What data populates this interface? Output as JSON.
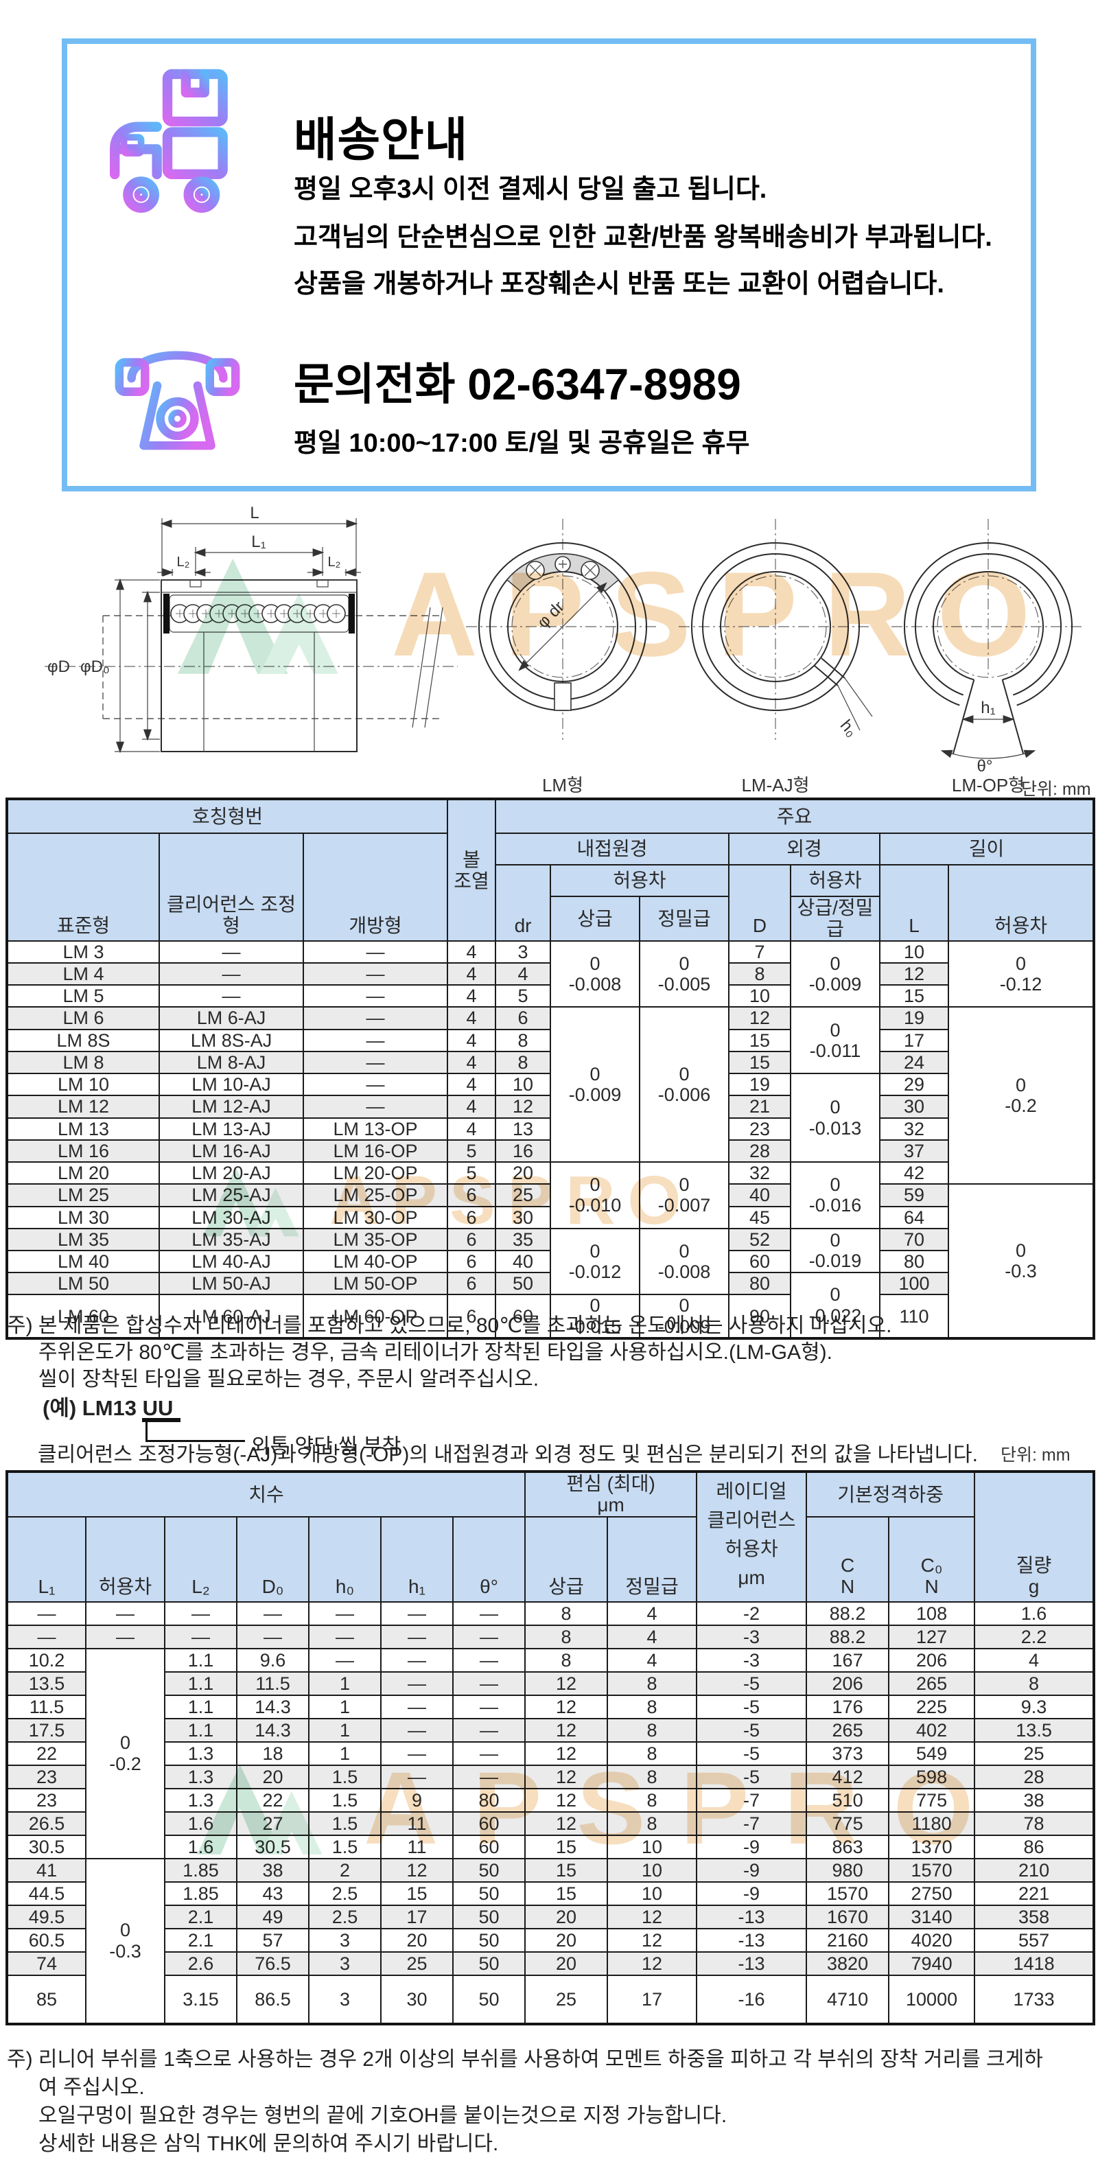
{
  "watermark": {
    "text": "APSPRO"
  },
  "shipping": {
    "title": "배송안내",
    "lines": [
      "평일 오후3시 이전 결제시 당일 출고 됩니다.",
      "고객님의 단순변심으로 인한 교환/반품 왕복배송비가 부과됩니다.",
      "상품을 개봉하거나 포장훼손시 반품 또는 교환이 어렵습니다."
    ]
  },
  "contact": {
    "title": "문의전화  02-6347-8989",
    "hours": "평일 10:00~17:00 토/일 및 공휴일은 휴무"
  },
  "diagram": {
    "views": [
      {
        "label": "LM형"
      },
      {
        "label": "LM-AJ형"
      },
      {
        "label": "LM-OP형"
      }
    ],
    "dims": {
      "L": "L",
      "L1": "L₁",
      "L2": "L₂",
      "phiD": "φD",
      "phiD0": "φD₀",
      "phidr": "φ dr",
      "h0": "h₀",
      "h1": "h₁",
      "theta": "θ°"
    },
    "unit": "단위: mm"
  },
  "table1": {
    "unit": "단위: mm",
    "header": {
      "model_group": "호칭형번",
      "ball": [
        "볼",
        "조열"
      ],
      "main_group": "주요",
      "col_standard": "표준형",
      "col_clearance": "클리어런스 조정형",
      "col_open": "개방형",
      "inner_dia": "내접원경",
      "outer_dia": "외경",
      "length": "길이",
      "tol": "허용차",
      "dr": "dr",
      "grade_high": "상급",
      "grade_precision": "정밀급",
      "D": "D",
      "grade_both": "상급/정밀급",
      "L": "L"
    },
    "rows": [
      [
        "LM 3",
        "—",
        "—",
        "4",
        "3",
        {
          "t": [
            "0",
            "-0.008"
          ],
          "rs": 3
        },
        {
          "t": [
            "0",
            "-0.005"
          ],
          "rs": 3
        },
        "7",
        {
          "t": [
            "0",
            "-0.009"
          ],
          "rs": 3
        },
        "10",
        {
          "t": [
            "0",
            "-0.12"
          ],
          "rs": 3
        }
      ],
      [
        "LM 4",
        "—",
        "—",
        "4",
        "4",
        "8",
        "12"
      ],
      [
        "LM 5",
        "—",
        "—",
        "4",
        "5",
        "10",
        "15"
      ],
      [
        "LM 6",
        "LM 6-AJ",
        "—",
        "4",
        "6",
        {
          "t": [
            "0",
            "-0.009"
          ],
          "rs": 7
        },
        {
          "t": [
            "0",
            "-0.006"
          ],
          "rs": 7
        },
        "12",
        {
          "t": [
            "0",
            "-0.011"
          ],
          "rs": 3
        },
        "19",
        {
          "t": [
            "0",
            "-0.2"
          ],
          "rs": 8
        }
      ],
      [
        "LM 8S",
        "LM 8S-AJ",
        "—",
        "4",
        "8",
        "15",
        "17"
      ],
      [
        "LM 8",
        "LM 8-AJ",
        "—",
        "4",
        "8",
        "15",
        "24"
      ],
      [
        "LM 10",
        "LM 10-AJ",
        "—",
        "4",
        "10",
        "19",
        {
          "t": [
            "0",
            "-0.013"
          ],
          "rs": 4
        },
        "29"
      ],
      [
        "LM 12",
        "LM 12-AJ",
        "—",
        "4",
        "12",
        "21",
        "30"
      ],
      [
        "LM 13",
        "LM 13-AJ",
        "LM 13-OP",
        "4",
        "13",
        "23",
        "32"
      ],
      [
        "LM 16",
        "LM 16-AJ",
        "LM 16-OP",
        "5",
        "16",
        "28",
        "37"
      ],
      [
        "LM 20",
        "LM 20-AJ",
        "LM 20-OP",
        "5",
        "20",
        {
          "t": [
            "0",
            "-0.010"
          ],
          "rs": 3
        },
        {
          "t": [
            "0",
            "-0.007"
          ],
          "rs": 3
        },
        "32",
        {
          "t": [
            "0",
            "-0.016"
          ],
          "rs": 3
        },
        "42"
      ],
      [
        "LM 25",
        "LM 25-AJ",
        "LM 25-OP",
        "6",
        "25",
        "40",
        "59",
        {
          "t": [
            "0",
            "-0.3"
          ],
          "rs": 6
        }
      ],
      [
        "LM 30",
        "LM 30-AJ",
        "LM 30-OP",
        "6",
        "30",
        "45",
        "64"
      ],
      [
        "LM 35",
        "LM 35-AJ",
        "LM 35-OP",
        "6",
        "35",
        {
          "t": [
            "0",
            "-0.012"
          ],
          "rs": 3
        },
        {
          "t": [
            "0",
            "-0.008"
          ],
          "rs": 3
        },
        "52",
        {
          "t": [
            "0",
            "-0.019"
          ],
          "rs": 2
        },
        "70"
      ],
      [
        "LM 40",
        "LM 40-AJ",
        "LM 40-OP",
        "6",
        "40",
        "60",
        "80"
      ],
      [
        "LM 50",
        "LM 50-AJ",
        "LM 50-OP",
        "6",
        "50",
        "80",
        {
          "t": [
            "0",
            "-0.022"
          ],
          "rs": 2
        },
        "100"
      ],
      [
        "LM 60",
        "LM 60-AJ",
        "LM 60-OP",
        "6",
        "60",
        {
          "t": [
            "0",
            "-0.015"
          ]
        },
        {
          "t": [
            "0",
            "-0.009"
          ]
        },
        "90",
        "110"
      ]
    ]
  },
  "notes1": [
    "주) 본 제품은 합성수지 리테이너를 포함하고 있으므로, 80℃를 초과하는 온도에서는 사용하지 마십시오.",
    "주위온도가 80℃를 초과하는 경우, 금속 리테이너가 장착된 타입을 사용하십시오.(LM-GA형).",
    "씰이 장착된 타입을 필요로하는 경우, 주문시 알려주십시오."
  ],
  "example": {
    "code": "(예) LM13 UU",
    "callout": "외통 양단 씰 부착"
  },
  "clearance_note": "클리어런스 조정가능형(-AJ)과 개방형(-OP)의 내접원경과 외경 정도 및 편심은 분리되기 전의 값을 나타냅니다.",
  "table2": {
    "unit": "단위: mm",
    "header": {
      "dims_group": "치수",
      "ecc": [
        "편심 (최대)",
        "μm"
      ],
      "radial": [
        "레이디얼",
        "클리어런스",
        "허용차",
        "μm"
      ],
      "load_group": "기본정격하중",
      "mass": [
        "질량",
        "g"
      ],
      "L1": "L₁",
      "tol": "허용차",
      "L2": "L₂",
      "D0": "D₀",
      "h0": "h₀",
      "h1": "h₁",
      "theta": "θ°",
      "grade_high": "상급",
      "grade_precision": "정밀급",
      "C": [
        "C",
        "N"
      ],
      "C0": [
        "C₀",
        "N"
      ]
    },
    "rows": [
      [
        "—",
        "—",
        "—",
        "—",
        "—",
        "—",
        "—",
        "8",
        "4",
        "-2",
        "88.2",
        "108",
        "1.6"
      ],
      [
        "—",
        "—",
        "—",
        "—",
        "—",
        "—",
        "—",
        "8",
        "4",
        "-3",
        "88.2",
        "127",
        "2.2"
      ],
      [
        "10.2",
        {
          "t": [
            "0",
            "-0.2"
          ],
          "rs": 9
        },
        "1.1",
        "9.6",
        "—",
        "—",
        "—",
        "8",
        "4",
        "-3",
        "167",
        "206",
        "4"
      ],
      [
        "13.5",
        "1.1",
        "11.5",
        "1",
        "—",
        "—",
        "12",
        "8",
        "-5",
        "206",
        "265",
        "8"
      ],
      [
        "11.5",
        "1.1",
        "14.3",
        "1",
        "—",
        "—",
        "12",
        "8",
        "-5",
        "176",
        "225",
        "9.3"
      ],
      [
        "17.5",
        "1.1",
        "14.3",
        "1",
        "—",
        "—",
        "12",
        "8",
        "-5",
        "265",
        "402",
        "13.5"
      ],
      [
        "22",
        "1.3",
        "18",
        "1",
        "—",
        "—",
        "12",
        "8",
        "-5",
        "373",
        "549",
        "25"
      ],
      [
        "23",
        "1.3",
        "20",
        "1.5",
        "—",
        "—",
        "12",
        "8",
        "-5",
        "412",
        "598",
        "28"
      ],
      [
        "23",
        "1.3",
        "22",
        "1.5",
        "9",
        "80",
        "12",
        "8",
        "-7",
        "510",
        "775",
        "38"
      ],
      [
        "26.5",
        "1.6",
        "27",
        "1.5",
        "11",
        "60",
        "12",
        "8",
        "-7",
        "775",
        "1180",
        "78"
      ],
      [
        "30.5",
        "1.6",
        "30.5",
        "1.5",
        "11",
        "60",
        "15",
        "10",
        "-9",
        "863",
        "1370",
        "86"
      ],
      [
        "41",
        {
          "t": [
            "0",
            "-0.3"
          ],
          "rs": 6
        },
        "1.85",
        "38",
        "2",
        "12",
        "50",
        "15",
        "10",
        "-9",
        "980",
        "1570",
        "210"
      ],
      [
        "44.5",
        "1.85",
        "43",
        "2.5",
        "15",
        "50",
        "15",
        "10",
        "-9",
        "1570",
        "2750",
        "221"
      ],
      [
        "49.5",
        "2.1",
        "49",
        "2.5",
        "17",
        "50",
        "20",
        "12",
        "-13",
        "1670",
        "3140",
        "358"
      ],
      [
        "60.5",
        "2.1",
        "57",
        "3",
        "20",
        "50",
        "20",
        "12",
        "-13",
        "2160",
        "4020",
        "557"
      ],
      [
        "74",
        "2.6",
        "76.5",
        "3",
        "25",
        "50",
        "20",
        "12",
        "-13",
        "3820",
        "7940",
        "1418"
      ],
      [
        "85",
        "3.15",
        "86.5",
        "3",
        "30",
        "50",
        "25",
        "17",
        "-16",
        "4710",
        "10000",
        "1733"
      ]
    ]
  },
  "notes2": [
    "주) 리니어 부쉬를 1축으로 사용하는 경우 2개 이상의 부쉬를 사용하여 모멘트 하중을 피하고 각 부쉬의 장착 거리를 크게하",
    "여 주십시오.",
    "오일구멍이 필요한 경우는 형번의 끝에 기호OH를 붙이는것으로 지정 가능합니다.",
    "상세한 내용은 삼익 THK에 문의하여 주시기 바랍니다."
  ]
}
